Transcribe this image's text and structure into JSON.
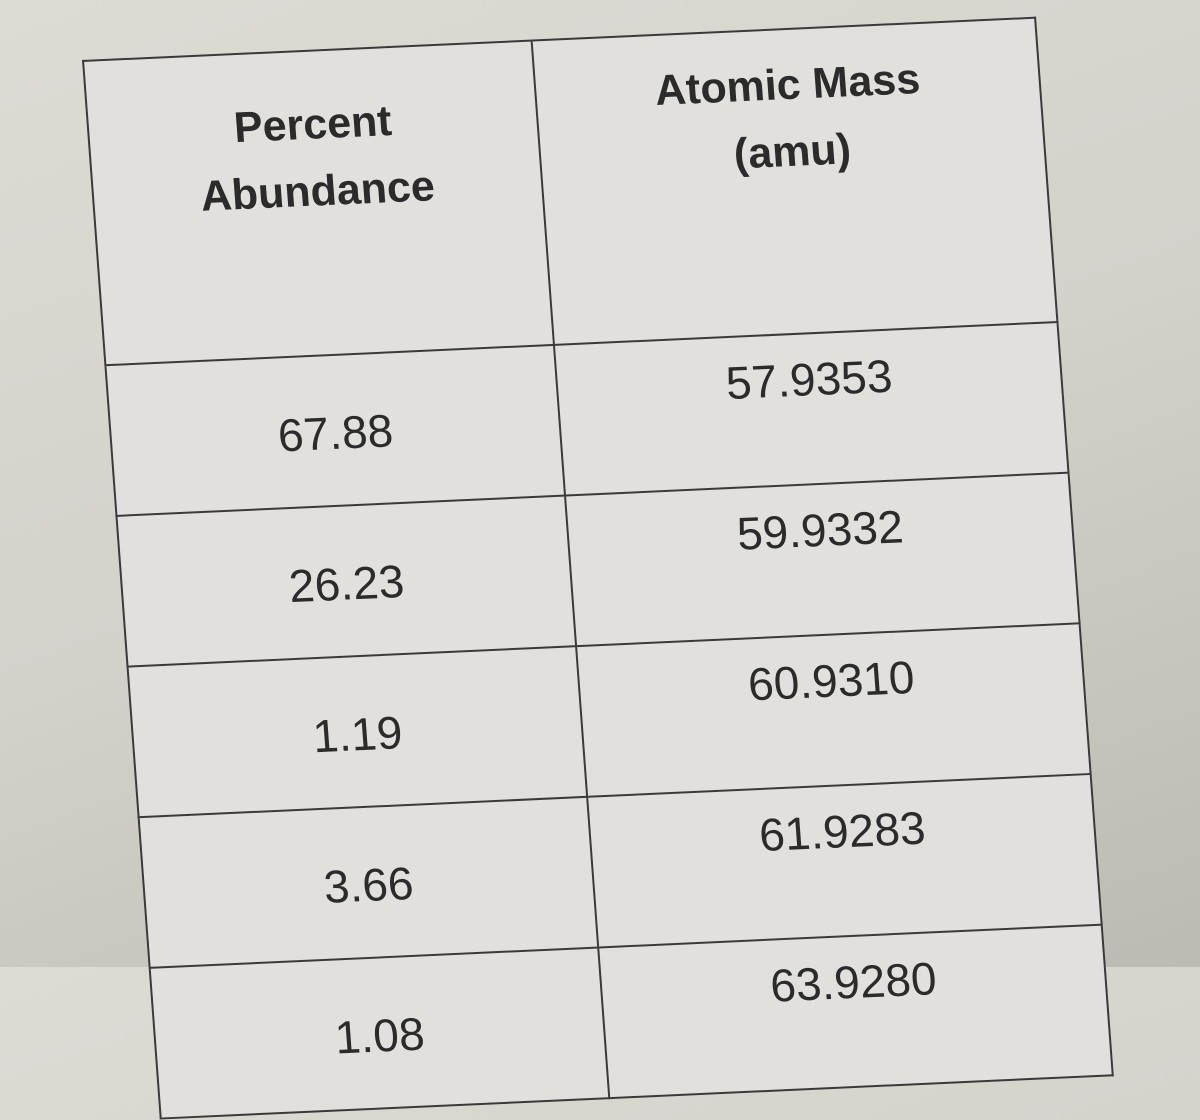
{
  "table": {
    "headers": [
      "Percent\nAbundance",
      "Atomic Mass\n(amu)"
    ],
    "header_lines": [
      [
        "Percent",
        "Abundance"
      ],
      [
        "Atomic Mass",
        "(amu)"
      ]
    ],
    "rows": [
      [
        "67.88",
        "57.9353"
      ],
      [
        "26.23",
        "59.9332"
      ],
      [
        "1.19",
        "60.9310"
      ],
      [
        "3.66",
        "61.9283"
      ],
      [
        "1.08",
        "63.9280"
      ]
    ]
  }
}
